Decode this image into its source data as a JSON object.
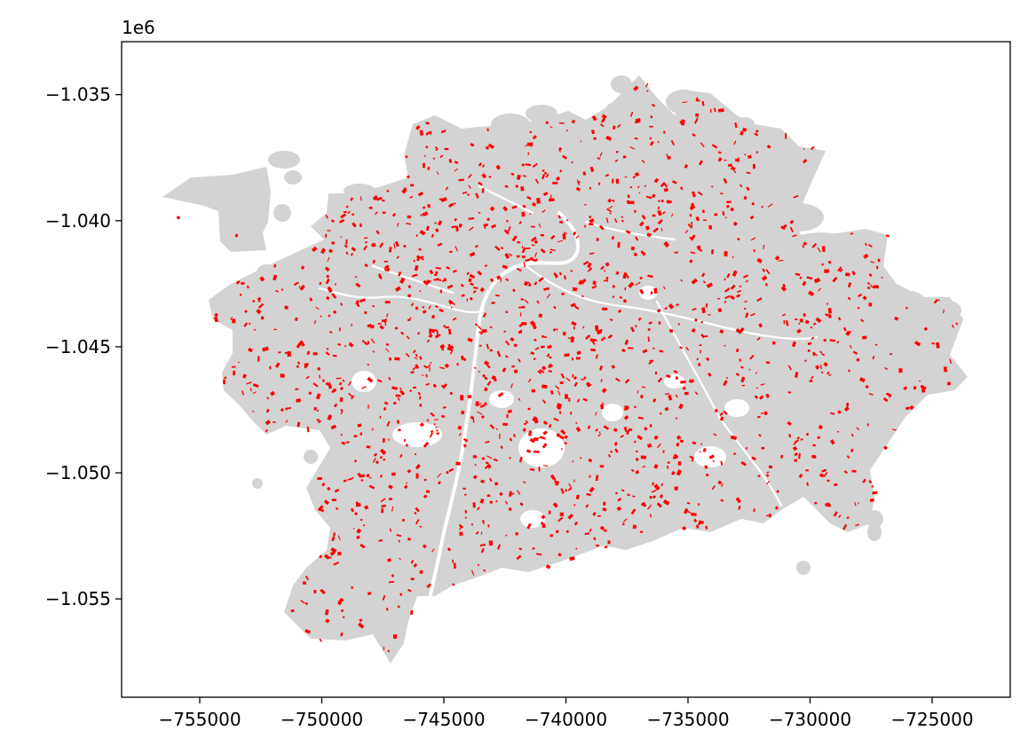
{
  "chart_data": {
    "type": "map",
    "title": "",
    "xlabel": "",
    "ylabel": "",
    "y_offset_label": "1e6",
    "xlim": [
      -758200,
      -721800
    ],
    "ylim": [
      -1058900,
      -1032900
    ],
    "x_ticks": [
      -755000,
      -750000,
      -745000,
      -740000,
      -735000,
      -730000,
      -725000
    ],
    "x_tick_labels": [
      "−755000",
      "−750000",
      "−745000",
      "−740000",
      "−735000",
      "−730000",
      "−725000"
    ],
    "y_ticks": [
      -1035000,
      -1040000,
      -1045000,
      -1050000,
      -1055000
    ],
    "y_tick_labels": [
      "−1.035",
      "−1.040",
      "−1.045",
      "−1.050",
      "−1.055"
    ],
    "grid": false,
    "legend": "none",
    "layers": [
      {
        "role": "base polygons",
        "color": "#d3d3d3"
      },
      {
        "role": "highlighted parcels",
        "color": "#ff0000"
      }
    ],
    "extent": {
      "x": [
        -756500,
        -723500
      ],
      "y": [
        -1058500,
        -1034000
      ]
    }
  }
}
